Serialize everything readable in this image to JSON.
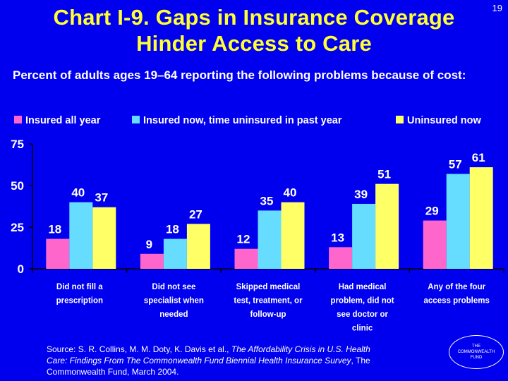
{
  "slide_number": "19",
  "title_line1": "Chart I-9. Gaps in Insurance Coverage",
  "title_line2": "Hinder Access to Care",
  "source": {
    "prefix": "Source: S. R. Collins, M. M. Doty, K. Davis et al., ",
    "italic": "The Affordability Crisis in U.S. Health Care: Findings From The Commonwealth Fund Biennial Health Insurance Survey",
    "suffix": ", The Commonwealth Fund, March 2004."
  },
  "logo": {
    "line1": "THE",
    "line2": "COMMONWEALTH",
    "line3": "FUND"
  },
  "colors": {
    "background": "#0000ee",
    "title": "#ffff33",
    "series": [
      "#ff66cc",
      "#66ddff",
      "#ffff66"
    ]
  },
  "chart_data": {
    "type": "bar",
    "title": "Percent of adults ages 19–64 reporting the following problems because of cost:",
    "xlabel": "",
    "ylabel": "",
    "ylim": [
      0,
      75
    ],
    "yticks": [
      0,
      25,
      50,
      75
    ],
    "legend_position": "top",
    "categories": [
      [
        "Did not fill a",
        "prescription"
      ],
      [
        "Did not see",
        "specialist when",
        "needed"
      ],
      [
        "Skipped medical",
        "test, treatment, or",
        "follow-up"
      ],
      [
        "Had medical",
        "problem, did not",
        "see doctor or",
        "clinic"
      ],
      [
        "Any of the four",
        "access problems"
      ]
    ],
    "series": [
      {
        "name": "Insured all year",
        "values": [
          18,
          9,
          12,
          13,
          29
        ]
      },
      {
        "name": "Insured now, time uninsured in past year",
        "values": [
          40,
          18,
          35,
          39,
          57
        ]
      },
      {
        "name": "Uninsured now",
        "values": [
          37,
          27,
          40,
          51,
          61
        ]
      }
    ]
  }
}
